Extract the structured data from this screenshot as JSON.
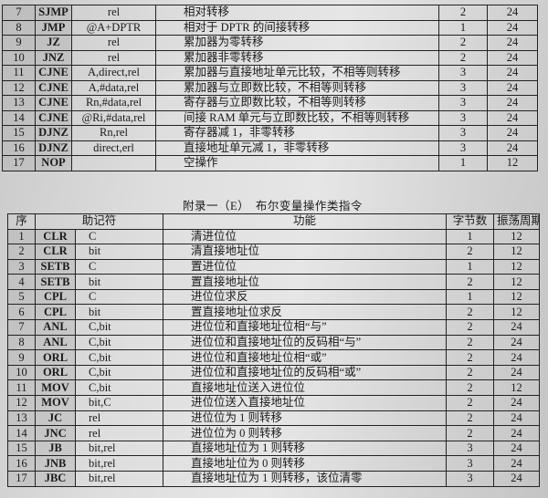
{
  "top_table": {
    "rows": [
      {
        "no": "7",
        "mnemonic": "SJMP",
        "operand": "rel",
        "function": "相对转移",
        "bytes": "2",
        "cycles": "24"
      },
      {
        "no": "8",
        "mnemonic": "JMP",
        "operand": "@A+DPTR",
        "function": "相对于 DPTR 的间接转移",
        "bytes": "1",
        "cycles": "24"
      },
      {
        "no": "9",
        "mnemonic": "JZ",
        "operand": "rel",
        "function": "累加器为零转移",
        "bytes": "2",
        "cycles": "24"
      },
      {
        "no": "10",
        "mnemonic": "JNZ",
        "operand": "rel",
        "function": "累加器非零转移",
        "bytes": "2",
        "cycles": "24"
      },
      {
        "no": "11",
        "mnemonic": "CJNE",
        "operand": "A,direct,rel",
        "function": "累加器与直接地址单元比较，不相等则转移",
        "bytes": "3",
        "cycles": "24"
      },
      {
        "no": "12",
        "mnemonic": "CJNE",
        "operand": "A,#data,rel",
        "function": "累加器与立即数比较，不相等则转移",
        "bytes": "3",
        "cycles": "24"
      },
      {
        "no": "13",
        "mnemonic": "CJNE",
        "operand": "Rn,#data,rel",
        "function": "寄存器与立即数比较，不相等则转移",
        "bytes": "3",
        "cycles": "24"
      },
      {
        "no": "14",
        "mnemonic": "CJNE",
        "operand": "@Ri,#data,rel",
        "function": "间接 RAM 单元与立即数比较，不相等则转移",
        "bytes": "3",
        "cycles": "24"
      },
      {
        "no": "15",
        "mnemonic": "DJNZ",
        "operand": "Rn,rel",
        "function": "寄存器减 1，非零转移",
        "bytes": "3",
        "cycles": "24"
      },
      {
        "no": "16",
        "mnemonic": "DJNZ",
        "operand": "direct,erl",
        "function": "直接地址单元减 1，非零转移",
        "bytes": "3",
        "cycles": "24"
      },
      {
        "no": "17",
        "mnemonic": "NOP",
        "operand": "",
        "function": "空操作",
        "bytes": "1",
        "cycles": "12"
      }
    ]
  },
  "bottom_table": {
    "title": "附录一（E）　布尔变量操作类指令",
    "headers": {
      "no": "序",
      "mnemonic": "助记符",
      "function": "功能",
      "bytes": "字节数",
      "cycles": "振荡周期"
    },
    "rows": [
      {
        "no": "1",
        "mnemonic": "CLR",
        "operand": "C",
        "function": "清进位位",
        "bytes": "1",
        "cycles": "12"
      },
      {
        "no": "2",
        "mnemonic": "CLR",
        "operand": "bit",
        "function": "清直接地址位",
        "bytes": "2",
        "cycles": "12"
      },
      {
        "no": "3",
        "mnemonic": "SETB",
        "operand": "C",
        "function": "置进位位",
        "bytes": "1",
        "cycles": "12"
      },
      {
        "no": "4",
        "mnemonic": "SETB",
        "operand": "bit",
        "function": "置直接地址位",
        "bytes": "2",
        "cycles": "12"
      },
      {
        "no": "5",
        "mnemonic": "CPL",
        "operand": "C",
        "function": "进位位求反",
        "bytes": "1",
        "cycles": "12"
      },
      {
        "no": "6",
        "mnemonic": "CPL",
        "operand": "bit",
        "function": "置直接地址位求反",
        "bytes": "2",
        "cycles": "12"
      },
      {
        "no": "7",
        "mnemonic": "ANL",
        "operand": "C,bit",
        "function": "进位位和直接地址位相“与”",
        "bytes": "2",
        "cycles": "24"
      },
      {
        "no": "8",
        "mnemonic": "ANL",
        "operand": "C,bit",
        "function": "进位位和直接地址位的反码相“与”",
        "bytes": "2",
        "cycles": "24"
      },
      {
        "no": "9",
        "mnemonic": "ORL",
        "operand": "C,bit",
        "function": "进位位和直接地址位相“或”",
        "bytes": "2",
        "cycles": "24"
      },
      {
        "no": "10",
        "mnemonic": "ORL",
        "operand": "C,bit",
        "function": "进位位和直接地址位的反码相“或”",
        "bytes": "2",
        "cycles": "24"
      },
      {
        "no": "11",
        "mnemonic": "MOV",
        "operand": "C,bit",
        "function": "直接地址位送入进位位",
        "bytes": "2",
        "cycles": "12"
      },
      {
        "no": "12",
        "mnemonic": "MOV",
        "operand": "bit,C",
        "function": "进位位送入直接地址位",
        "bytes": "2",
        "cycles": "24"
      },
      {
        "no": "13",
        "mnemonic": "JC",
        "operand": "rel",
        "function": "进位位为 1 则转移",
        "bytes": "2",
        "cycles": "24"
      },
      {
        "no": "14",
        "mnemonic": "JNC",
        "operand": "rel",
        "function": "进位位为 0 则转移",
        "bytes": "2",
        "cycles": "24"
      },
      {
        "no": "15",
        "mnemonic": "JB",
        "operand": "bit,rel",
        "function": "直接地址位为 1 则转移",
        "bytes": "3",
        "cycles": "24"
      },
      {
        "no": "16",
        "mnemonic": "JNB",
        "operand": "bit,rel",
        "function": "直接地址位为 0 则转移",
        "bytes": "3",
        "cycles": "24"
      },
      {
        "no": "17",
        "mnemonic": "JBC",
        "operand": "bit,rel",
        "function": "直接地址位为 1 则转移，该位清零",
        "bytes": "3",
        "cycles": "24"
      }
    ]
  }
}
